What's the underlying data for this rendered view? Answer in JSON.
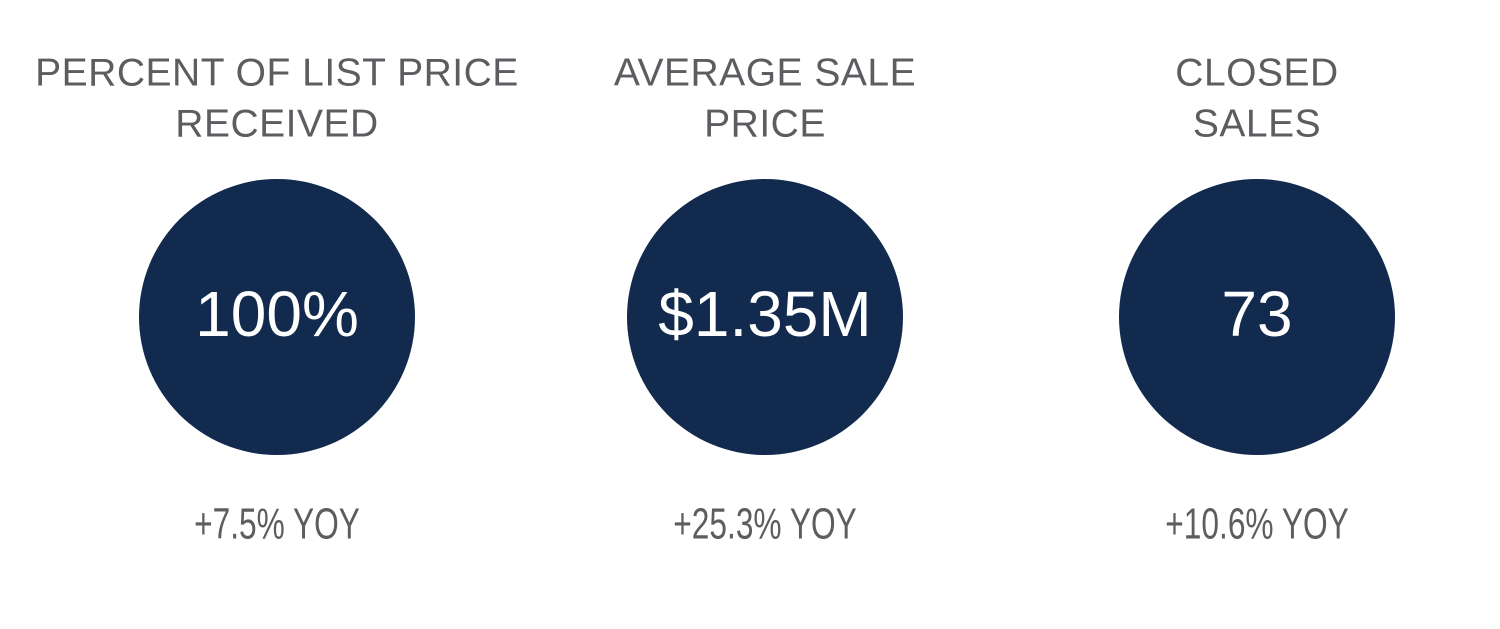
{
  "metrics": [
    {
      "title_lines": [
        "PERCENT OF LIST PRICE",
        "RECEIVED"
      ],
      "value": "100%",
      "change": "+7.5% YOY"
    },
    {
      "title_lines": [
        "AVERAGE SALE",
        "PRICE"
      ],
      "value": "$1.35M",
      "change": "+25.3% YOY"
    },
    {
      "title_lines": [
        "CLOSED",
        "SALES"
      ],
      "value": "73",
      "change": "+10.6% YOY"
    }
  ]
}
